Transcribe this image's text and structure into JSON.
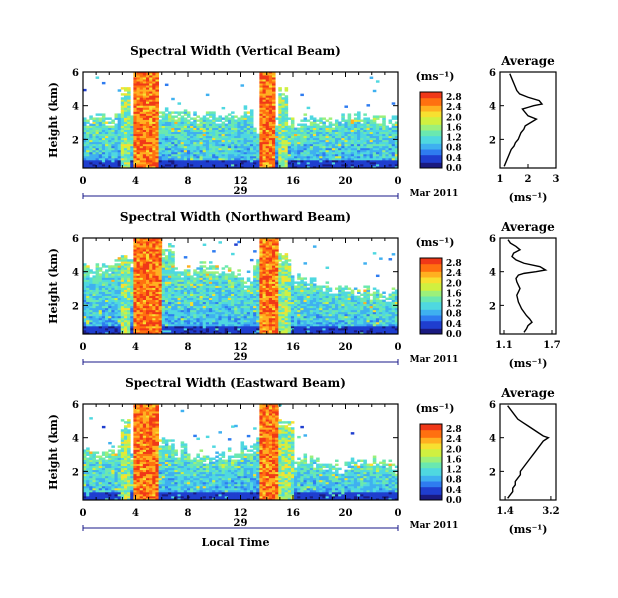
{
  "colors": {
    "colormap": [
      "#1a1a80",
      "#1f3ecf",
      "#2f7cf0",
      "#3fb0f0",
      "#4fd8e0",
      "#6ae8b0",
      "#9cf07a",
      "#d0f040",
      "#f7e030",
      "#ffb020",
      "#ff7010",
      "#f03818",
      "#d01818"
    ],
    "axis": "#000000",
    "timebar": "#1a1a8a"
  },
  "chart_data": [
    {
      "type": "heatmap",
      "title": "Spectral Width (Vertical Beam)",
      "ylabel": "Height (km)",
      "xlabel": "",
      "x_ticks": [
        "0",
        "4",
        "8",
        "12",
        "16",
        "20",
        "0"
      ],
      "y_ticks": [
        "2",
        "4",
        "6"
      ],
      "xlim": [
        0,
        24
      ],
      "ylim": [
        0.3,
        6
      ],
      "day_label": "29",
      "date_label": "Mar 2011",
      "colorbar": {
        "unit": "(ms⁻¹)",
        "ticks": [
          "0.0",
          "0.4",
          "0.8",
          "1.2",
          "1.6",
          "2.0",
          "2.4",
          "2.8"
        ],
        "range": [
          0,
          3.0
        ]
      },
      "top_height_profile": [
        3.3,
        3.4,
        3.3,
        3.2,
        3.3,
        3.5,
        3.6,
        3.7,
        3.5,
        3.4,
        3.3,
        3.6,
        3.8,
        3.0,
        3.1,
        3.2,
        3.3,
        3.4,
        3.3,
        3.2,
        3.4,
        3.5,
        3.3,
        3.2,
        3.0
      ],
      "high_width_bands": [
        [
          3.8,
          5.8
        ],
        [
          13.4,
          14.6
        ]
      ],
      "mid_width_bands": [
        [
          3.0,
          3.6
        ],
        [
          14.8,
          15.6
        ]
      ],
      "average": {
        "title": "Average",
        "xlabel": "(ms⁻¹)",
        "x_ticks": [
          "1",
          "2",
          "3"
        ],
        "xlim": [
          1.0,
          3.0
        ],
        "y_ticks": [
          "2",
          "4",
          "6"
        ],
        "ylim": [
          0.3,
          6
        ],
        "x": [
          1.15,
          1.2,
          1.25,
          1.3,
          1.35,
          1.4,
          1.5,
          1.55,
          1.65,
          1.7,
          1.75,
          1.85,
          1.9,
          2.1,
          2.3,
          2.0,
          1.9,
          1.8,
          2.0,
          2.2,
          2.5,
          2.4,
          2.0,
          1.7,
          1.6,
          1.55,
          1.5,
          1.45,
          1.4,
          1.35
        ],
        "y": [
          0.4,
          0.6,
          0.8,
          1.0,
          1.2,
          1.4,
          1.6,
          1.8,
          2.0,
          2.2,
          2.4,
          2.6,
          2.8,
          3.0,
          3.2,
          3.4,
          3.6,
          3.8,
          3.9,
          4.0,
          4.1,
          4.3,
          4.5,
          4.7,
          4.9,
          5.1,
          5.3,
          5.5,
          5.7,
          5.9
        ]
      }
    },
    {
      "type": "heatmap",
      "title": "Spectral Width (Northward Beam)",
      "ylabel": "Height (km)",
      "xlabel": "",
      "x_ticks": [
        "0",
        "4",
        "8",
        "12",
        "16",
        "20",
        "0"
      ],
      "y_ticks": [
        "2",
        "4",
        "6"
      ],
      "xlim": [
        0,
        24
      ],
      "ylim": [
        0.3,
        6
      ],
      "day_label": "29",
      "date_label": "Mar 2011",
      "colorbar": {
        "unit": "(ms⁻¹)",
        "ticks": [
          "0.0",
          "0.4",
          "0.8",
          "1.2",
          "1.6",
          "2.0",
          "2.4",
          "2.8"
        ],
        "range": [
          0,
          3.0
        ]
      },
      "top_height_profile": [
        4.3,
        4.5,
        4.6,
        4.7,
        4.9,
        5.2,
        5.5,
        4.2,
        4.3,
        4.4,
        4.2,
        4.0,
        3.6,
        4.5,
        4.8,
        4.2,
        3.8,
        3.5,
        3.2,
        3.0,
        3.0,
        2.9,
        2.8,
        2.8,
        2.7
      ],
      "high_width_bands": [
        [
          3.9,
          5.9
        ],
        [
          13.4,
          14.8
        ]
      ],
      "mid_width_bands": [
        [
          2.8,
          3.6
        ],
        [
          14.9,
          15.8
        ]
      ],
      "average": {
        "title": "Average",
        "xlabel": "(ms⁻¹)",
        "x_ticks": [
          "1.1",
          "1.7"
        ],
        "xlim": [
          1.05,
          1.75
        ],
        "y_ticks": [
          "2",
          "4",
          "6"
        ],
        "ylim": [
          0.3,
          6
        ],
        "x": [
          1.35,
          1.38,
          1.4,
          1.45,
          1.42,
          1.38,
          1.35,
          1.32,
          1.3,
          1.28,
          1.27,
          1.26,
          1.28,
          1.3,
          1.28,
          1.26,
          1.25,
          1.28,
          1.35,
          1.5,
          1.62,
          1.55,
          1.35,
          1.25,
          1.2,
          1.22,
          1.3,
          1.25,
          1.18,
          1.15
        ],
        "y": [
          0.4,
          0.6,
          0.8,
          1.0,
          1.2,
          1.4,
          1.6,
          1.8,
          2.0,
          2.2,
          2.4,
          2.6,
          2.8,
          3.0,
          3.2,
          3.4,
          3.6,
          3.8,
          3.9,
          4.0,
          4.1,
          4.3,
          4.5,
          4.7,
          4.9,
          5.1,
          5.3,
          5.5,
          5.7,
          5.9
        ]
      }
    },
    {
      "type": "heatmap",
      "title": "Spectral Width (Eastward Beam)",
      "ylabel": "Height (km)",
      "xlabel": "Local Time",
      "x_ticks": [
        "0",
        "4",
        "8",
        "12",
        "16",
        "20",
        "0"
      ],
      "y_ticks": [
        "2",
        "4",
        "6"
      ],
      "xlim": [
        0,
        24
      ],
      "ylim": [
        0.3,
        6
      ],
      "day_label": "29",
      "date_label": "Mar 2011",
      "colorbar": {
        "unit": "(ms⁻¹)",
        "ticks": [
          "0.0",
          "0.4",
          "0.8",
          "1.2",
          "1.6",
          "2.0",
          "2.4",
          "2.8"
        ],
        "range": [
          0,
          3.0
        ]
      },
      "top_height_profile": [
        3.2,
        3.3,
        3.4,
        3.3,
        3.5,
        3.8,
        4.0,
        3.5,
        3.2,
        3.0,
        3.1,
        3.2,
        3.5,
        3.8,
        3.9,
        3.3,
        2.8,
        2.7,
        2.6,
        2.5,
        2.6,
        2.7,
        2.6,
        2.5,
        2.5
      ],
      "high_width_bands": [
        [
          3.9,
          5.8
        ],
        [
          13.4,
          14.8
        ]
      ],
      "mid_width_bands": [
        [
          2.9,
          3.7
        ],
        [
          14.9,
          16.0
        ]
      ],
      "average": {
        "title": "Average",
        "xlabel": "(ms⁻¹)",
        "x_ticks": [
          "1.4",
          "3.2"
        ],
        "xlim": [
          1.2,
          3.4
        ],
        "y_ticks": [
          "2",
          "4",
          "6"
        ],
        "ylim": [
          0.3,
          6
        ],
        "x": [
          1.5,
          1.6,
          1.7,
          1.7,
          1.8,
          1.8,
          1.9,
          2.0,
          2.0,
          2.1,
          2.2,
          2.3,
          2.4,
          2.5,
          2.6,
          2.7,
          2.8,
          2.9,
          3.0,
          3.1,
          2.9,
          2.7,
          2.5,
          2.3,
          2.1,
          1.9,
          1.8,
          1.7,
          1.6,
          1.5
        ],
        "y": [
          0.4,
          0.6,
          0.8,
          1.0,
          1.2,
          1.4,
          1.6,
          1.8,
          2.0,
          2.2,
          2.4,
          2.6,
          2.8,
          3.0,
          3.2,
          3.4,
          3.6,
          3.8,
          3.9,
          4.0,
          4.1,
          4.3,
          4.5,
          4.7,
          4.9,
          5.1,
          5.3,
          5.5,
          5.7,
          5.9
        ]
      }
    }
  ]
}
